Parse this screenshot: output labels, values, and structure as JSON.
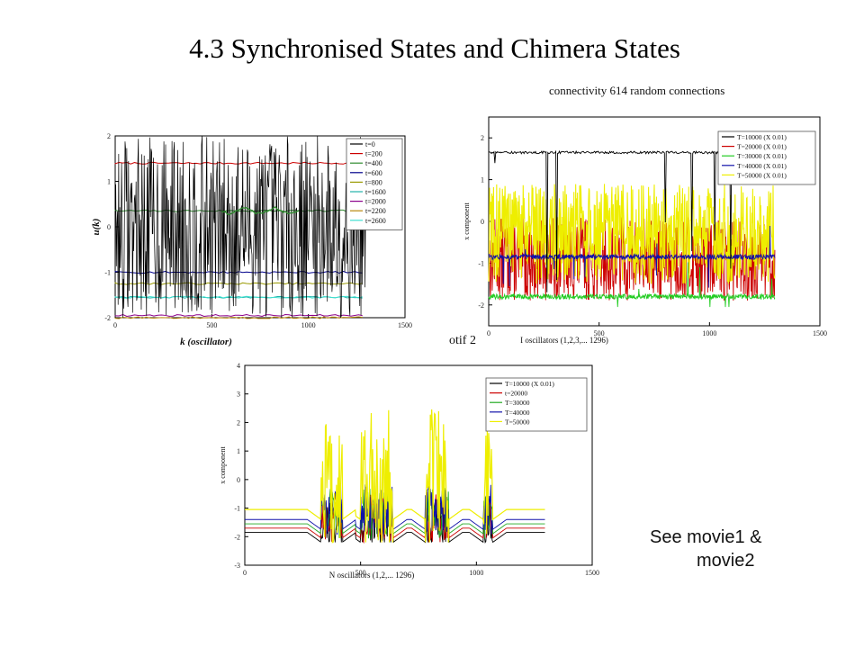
{
  "slide": {
    "title": "4.3 Synchronised States and Chimera States",
    "caption_top_right": "connectivity 614 random connections",
    "caption_motif": "otif 2",
    "note_line1": "See movie1 &",
    "note_line2": "movie2"
  },
  "chart_data": [
    {
      "type": "line",
      "xlabel": "k (oscillator)",
      "ylabel": "u(k)",
      "xlim": [
        0,
        1500
      ],
      "ylim": [
        -2,
        2
      ],
      "x_ticks": [
        "0",
        "500",
        "1000",
        "1500"
      ],
      "y_ticks": [
        "-2",
        "-1",
        "0",
        "1",
        "2"
      ],
      "legend_position": "top-right",
      "series": [
        {
          "name": "t=0",
          "color": "#000000",
          "kind": "noise",
          "x_end": 1296,
          "center": 0,
          "amplitude": 2
        },
        {
          "name": "t=200",
          "color": "#cc0000",
          "kind": "flat",
          "x_end": 1296,
          "level": 1.4
        },
        {
          "name": "t=400",
          "color": "#2e8b2e",
          "kind": "flat",
          "x_end": 1296,
          "level": 0.35
        },
        {
          "name": "t=600",
          "color": "#00008b",
          "kind": "flat",
          "x_end": 1296,
          "level": -1.0
        },
        {
          "name": "t=800",
          "color": "#999900",
          "kind": "flat",
          "x_end": 1296,
          "level": -1.25
        },
        {
          "name": "t=1600",
          "color": "#20b2aa",
          "kind": "flat",
          "x_end": 1296,
          "level": -1.55
        },
        {
          "name": "t=2000",
          "color": "#8b008b",
          "kind": "flat",
          "x_end": 1296,
          "level": -1.95
        },
        {
          "name": "t=2200",
          "color": "#b8860b",
          "kind": "flat",
          "x_end": 1296,
          "level": -2.0
        },
        {
          "name": "t=2600",
          "color": "#40e0d0",
          "kind": "flat",
          "x_end": 1296,
          "level": -1.55
        }
      ]
    },
    {
      "type": "line",
      "xlabel": "I oscillators (1,2,3,... 1296)",
      "ylabel": "x component",
      "xlim": [
        0,
        1500
      ],
      "ylim": [
        -2.5,
        2.5
      ],
      "x_ticks": [
        "0",
        "500",
        "1000",
        "1500"
      ],
      "y_ticks": [
        "-2",
        "-1",
        "0",
        "1",
        "2"
      ],
      "legend_position": "top-right",
      "series": [
        {
          "name": "T=10000 (X 0.01)",
          "color": "#000000",
          "kind": "flat_spikes",
          "x_end": 1296,
          "level": 1.65
        },
        {
          "name": "T=20000 (X 0.01)",
          "color": "#cc0000",
          "kind": "noise",
          "x_end": 1296,
          "center": -0.9,
          "amplitude": 1.0
        },
        {
          "name": "T=30000 (X 0.01)",
          "color": "#22cc22",
          "kind": "flat_noise",
          "x_end": 1296,
          "level": -1.8
        },
        {
          "name": "T=40000 (X 0.01)",
          "color": "#1010aa",
          "kind": "flat_noise",
          "x_end": 1296,
          "level": -0.85
        },
        {
          "name": "T=50000 (X 0.01)",
          "color": "#eeee00",
          "kind": "noise",
          "x_end": 1296,
          "center": -0.3,
          "amplitude": 1.2
        }
      ]
    },
    {
      "type": "line",
      "xlabel": "N oscillators (1,2,... 1296)",
      "ylabel": "x component",
      "xlim": [
        0,
        1500
      ],
      "ylim": [
        -3,
        4
      ],
      "x_ticks": [
        "0",
        "500",
        "1000",
        "1500"
      ],
      "y_ticks": [
        "-3",
        "-2",
        "-1",
        "0",
        "1",
        "2",
        "3",
        "4"
      ],
      "legend_position": "top-right",
      "bursts": [
        [
          330,
          420
        ],
        [
          500,
          640
        ],
        [
          780,
          880
        ],
        [
          1030,
          1070
        ]
      ],
      "series": [
        {
          "name": "T=10000 (X 0.01)",
          "color": "#000000",
          "level": -1.85
        },
        {
          "name": "t=20000",
          "color": "#cc0000",
          "level": -1.7
        },
        {
          "name": "T=30000",
          "color": "#22aa22",
          "level": -1.55
        },
        {
          "name": "T=40000",
          "color": "#1010aa",
          "level": -1.4
        },
        {
          "name": "T=50000",
          "color": "#eeee00",
          "level": -1.05
        }
      ]
    }
  ]
}
